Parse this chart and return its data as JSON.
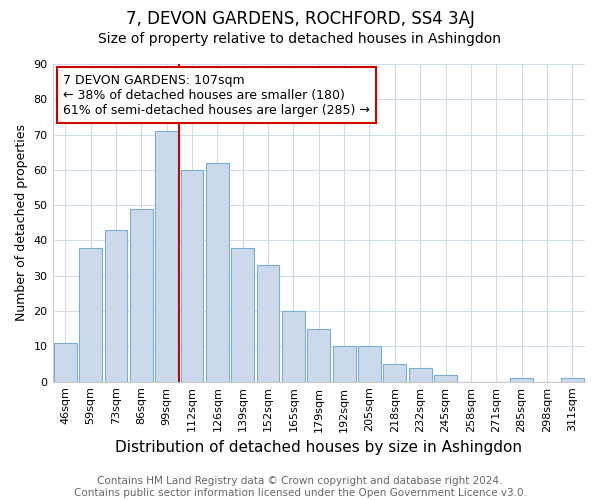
{
  "title": "7, DEVON GARDENS, ROCHFORD, SS4 3AJ",
  "subtitle": "Size of property relative to detached houses in Ashingdon",
  "xlabel": "Distribution of detached houses by size in Ashingdon",
  "ylabel": "Number of detached properties",
  "categories": [
    "46sqm",
    "59sqm",
    "73sqm",
    "86sqm",
    "99sqm",
    "112sqm",
    "126sqm",
    "139sqm",
    "152sqm",
    "165sqm",
    "179sqm",
    "192sqm",
    "205sqm",
    "218sqm",
    "232sqm",
    "245sqm",
    "258sqm",
    "271sqm",
    "285sqm",
    "298sqm",
    "311sqm"
  ],
  "values": [
    11,
    38,
    43,
    49,
    71,
    60,
    62,
    38,
    33,
    20,
    15,
    10,
    10,
    5,
    4,
    2,
    0,
    0,
    1,
    0,
    1
  ],
  "bar_color": "#ccd9ea",
  "bar_edge_color": "#7aadd4",
  "vline_x": 4.5,
  "vline_color": "#cc0000",
  "annotation_text": "7 DEVON GARDENS: 107sqm\n← 38% of detached houses are smaller (180)\n61% of semi-detached houses are larger (285) →",
  "annotation_box_color": "#ffffff",
  "annotation_box_edge_color": "#cc0000",
  "ylim": [
    0,
    90
  ],
  "yticks": [
    0,
    10,
    20,
    30,
    40,
    50,
    60,
    70,
    80,
    90
  ],
  "footer_text": "Contains HM Land Registry data © Crown copyright and database right 2024.\nContains public sector information licensed under the Open Government Licence v3.0.",
  "background_color": "#ffffff",
  "plot_bg_color": "#ffffff",
  "grid_color": "#d0dce8",
  "title_fontsize": 12,
  "subtitle_fontsize": 10,
  "xlabel_fontsize": 11,
  "ylabel_fontsize": 9,
  "tick_fontsize": 8,
  "footer_fontsize": 7.5,
  "annotation_fontsize": 9
}
